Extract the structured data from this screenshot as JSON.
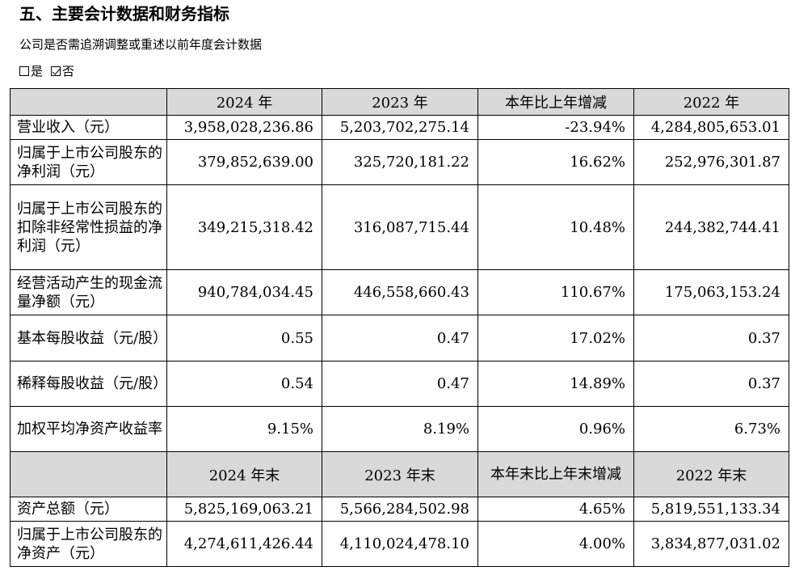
{
  "title": "五、主要会计数据和财务指标",
  "question": "公司是否需追溯调整或重述以前年度会计数据",
  "options": [
    {
      "label": "是",
      "checked": false
    },
    {
      "label": "否",
      "checked": true
    }
  ],
  "table": {
    "header1": [
      "",
      "2024 年",
      "2023 年",
      "本年比上年增减",
      "2022 年"
    ],
    "rows1": [
      [
        "营业收入（元）",
        "3,958,028,236.86",
        "5,203,702,275.14",
        "-23.94%",
        "4,284,805,653.01"
      ],
      [
        "归属于上市公司股东的净利润（元）",
        "379,852,639.00",
        "325,720,181.22",
        "16.62%",
        "252,976,301.87"
      ],
      [
        "归属于上市公司股东的扣除非经常性损益的净利润（元）",
        "349,215,318.42",
        "316,087,715.44",
        "10.48%",
        "244,382,744.41"
      ],
      [
        "经营活动产生的现金流量净额（元）",
        "940,784,034.45",
        "446,558,660.43",
        "110.67%",
        "175,063,153.24"
      ],
      [
        "基本每股收益（元/股）",
        "0.55",
        "0.47",
        "17.02%",
        "0.37"
      ],
      [
        "稀释每股收益（元/股）",
        "0.54",
        "0.47",
        "14.89%",
        "0.37"
      ],
      [
        "加权平均净资产收益率",
        "9.15%",
        "8.19%",
        "0.96%",
        "6.73%"
      ]
    ],
    "header2": [
      "",
      "2024 年末",
      "2023 年末",
      "本年末比上年末增减",
      "2022 年末"
    ],
    "rows2": [
      [
        "资产总额（元）",
        "5,825,169,063.21",
        "5,566,284,502.98",
        "4.65%",
        "5,819,551,133.34"
      ],
      [
        "归属于上市公司股东的净资产（元）",
        "4,274,611,426.44",
        "4,110,024,478.10",
        "4.00%",
        "3,834,877,031.02"
      ]
    ]
  }
}
